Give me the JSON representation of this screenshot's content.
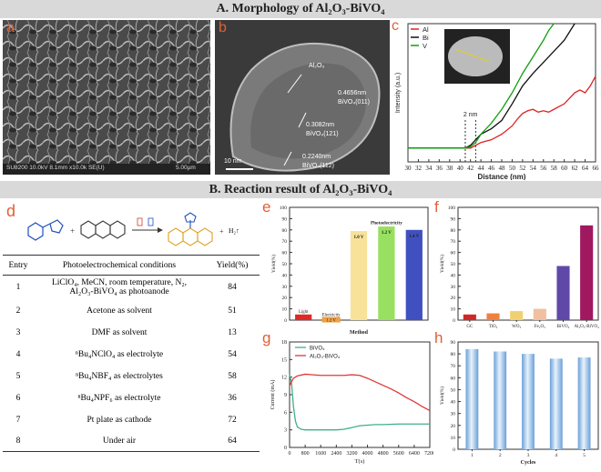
{
  "header_a": "A. Morphology of Al₂O₃-BiVO₄",
  "header_b": "B. Reaction result of Al₂O₃-BiVO₄",
  "panel_letters": {
    "a": "a",
    "b": "b",
    "c": "c",
    "d": "d",
    "e": "e",
    "f": "f",
    "g": "g",
    "h": "h"
  },
  "sem": {
    "footer": "SU8200 10.0kV 8.1mm x10.0k SE(U)",
    "scale": "5.00µm"
  },
  "tem": {
    "layer": "Al₂O₃",
    "d1": "0.4656nm",
    "d1b": "BiVO₄(011)",
    "d2": "0.3082nm",
    "d2b": "BiVO₄(121)",
    "d3": "0.2240nm",
    "d3b": "BiVO₄(112)",
    "scale": "10 nm"
  },
  "table": {
    "headers": [
      "Entry",
      "Photoelectrochemical conditions",
      "Yield(%)"
    ],
    "rows": [
      {
        "entry": "1",
        "cond": "LiClO₄, MeCN, room temperature, N₂,",
        "cond2": "Al₂O₃-BiVO₄ as photoanode",
        "yield": "84"
      },
      {
        "entry": "2",
        "cond": "Acetone as solvent",
        "cond2": "",
        "yield": "51"
      },
      {
        "entry": "3",
        "cond": "DMF as solvent",
        "cond2": "",
        "yield": "13"
      },
      {
        "entry": "4",
        "cond": "ⁿBu₄NClO₄ as electrolyte",
        "cond2": "",
        "yield": "54"
      },
      {
        "entry": "5",
        "cond": "ⁿBu₄NBF₄ as electrolytes",
        "cond2": "",
        "yield": "58"
      },
      {
        "entry": "6",
        "cond": "ⁿBu₄NPF₆ as electrolyte",
        "cond2": "",
        "yield": "36"
      },
      {
        "entry": "7",
        "cond": "Pt plate as cathode",
        "cond2": "",
        "yield": "72"
      },
      {
        "entry": "8",
        "cond": "Under air",
        "cond2": "",
        "yield": "64"
      }
    ],
    "h2": "H₂↑"
  },
  "chart_data": [
    {
      "id": "c",
      "type": "line",
      "xlabel": "Distance (nm)",
      "ylabel": "Intensity (a.u.)",
      "xlim": [
        30,
        66
      ],
      "xticks": [
        30,
        32,
        34,
        36,
        38,
        40,
        42,
        44,
        46,
        48,
        50,
        52,
        54,
        56,
        58,
        60,
        62,
        64,
        66
      ],
      "annotation": "2 nm",
      "series": [
        {
          "name": "Al",
          "color": "#e02020",
          "x": [
            30,
            38,
            40,
            41,
            42,
            43,
            44,
            46,
            48,
            50,
            51,
            52,
            53,
            54,
            55,
            56,
            57,
            58,
            59,
            60,
            61,
            62,
            63,
            64,
            65,
            66
          ],
          "y": [
            0.1,
            0.1,
            0.1,
            0.1,
            0.1,
            0.12,
            0.14,
            0.16,
            0.2,
            0.26,
            0.31,
            0.35,
            0.37,
            0.38,
            0.36,
            0.37,
            0.36,
            0.38,
            0.4,
            0.42,
            0.46,
            0.5,
            0.52,
            0.5,
            0.55,
            0.62
          ]
        },
        {
          "name": "Bi",
          "color": "#111111",
          "x": [
            30,
            38,
            40,
            41,
            42,
            43,
            44,
            46,
            48,
            50,
            52,
            54,
            56,
            58,
            60,
            61,
            62
          ],
          "y": [
            0.1,
            0.1,
            0.1,
            0.1,
            0.12,
            0.16,
            0.2,
            0.24,
            0.3,
            0.42,
            0.55,
            0.64,
            0.72,
            0.8,
            0.88,
            0.94,
            1.0
          ]
        },
        {
          "name": "V",
          "color": "#10a010",
          "x": [
            30,
            38,
            40,
            41,
            42,
            43,
            44,
            46,
            48,
            50,
            52,
            54,
            56,
            57,
            58
          ],
          "y": [
            0.1,
            0.1,
            0.1,
            0.1,
            0.11,
            0.14,
            0.2,
            0.28,
            0.38,
            0.5,
            0.64,
            0.76,
            0.88,
            0.95,
            1.0
          ]
        }
      ]
    },
    {
      "id": "e",
      "type": "bar",
      "categories": [
        "Light",
        "Electricity",
        "Photoelectricity 1.0 V",
        "Photoelectricity 1.2 V",
        "Photoelectricity 1.4 V"
      ],
      "values": [
        5,
        2,
        79,
        83,
        80
      ],
      "bar_labels": [
        "Light",
        "Electricity",
        "1.0 V",
        "1.2 V",
        "1.4 V"
      ],
      "under_labels": [
        "",
        "1.2 V",
        "",
        "",
        ""
      ],
      "group_label": "Photoelectricity",
      "colors": [
        "#e02828",
        "#f0a040",
        "#f8e29a",
        "#98e060",
        "#4050c0"
      ],
      "xlabel": "Method",
      "ylabel": "Yield(%)",
      "ylim": [
        0,
        100
      ],
      "yticks": [
        0,
        10,
        20,
        30,
        40,
        50,
        60,
        70,
        80,
        90,
        100
      ]
    },
    {
      "id": "f",
      "type": "bar",
      "categories": [
        "GC",
        "TiO₂",
        "WO₃",
        "Fe₂O₃",
        "BiVO₄",
        "Al₂O₃-BiVO₄"
      ],
      "values": [
        5,
        6,
        8,
        10,
        48,
        84
      ],
      "colors": [
        "#d02828",
        "#f08040",
        "#f0d070",
        "#f0c0a0",
        "#6048a8",
        "#a01860"
      ],
      "ylabel": "Yield(%)",
      "ylim": [
        0,
        100
      ],
      "yticks": [
        0,
        10,
        20,
        30,
        40,
        50,
        60,
        70,
        80,
        90,
        100
      ]
    },
    {
      "id": "g",
      "type": "line",
      "xlabel": "T(s)",
      "ylabel": "Current (mA)",
      "xlim": [
        0,
        7200
      ],
      "ylim": [
        0,
        18
      ],
      "xticks": [
        0,
        800,
        1600,
        2400,
        3200,
        4000,
        4800,
        5600,
        6400,
        7200
      ],
      "yticks": [
        0,
        3,
        6,
        9,
        12,
        15,
        18
      ],
      "series": [
        {
          "name": "BiVO₄",
          "color": "#40b088",
          "x": [
            0,
            100,
            200,
            300,
            400,
            600,
            800,
            1200,
            1600,
            2000,
            2400,
            2800,
            3200,
            3600,
            4000,
            4400,
            4800,
            5600,
            6400,
            7200
          ],
          "y": [
            12.5,
            11,
            7,
            4.5,
            3.5,
            3.1,
            3.0,
            3.0,
            3.0,
            3.0,
            3.0,
            3.1,
            3.4,
            3.7,
            3.8,
            3.9,
            3.9,
            4.0,
            4.0,
            4.0
          ]
        },
        {
          "name": "Al₂O₃-BiVO₄",
          "color": "#e03838",
          "x": [
            0,
            100,
            200,
            400,
            800,
            1200,
            1600,
            2000,
            2400,
            2800,
            3200,
            3600,
            4000,
            4400,
            4800,
            5200,
            5600,
            6000,
            6400,
            6800,
            7200
          ],
          "y": [
            10.5,
            11.2,
            11.8,
            12.2,
            12.5,
            12.4,
            12.3,
            12.3,
            12.3,
            12.3,
            12.4,
            12.3,
            11.8,
            11.2,
            10.6,
            10.0,
            9.3,
            8.5,
            7.8,
            7.0,
            6.3
          ]
        }
      ]
    },
    {
      "id": "h",
      "type": "bar",
      "categories": [
        "1",
        "2",
        "3",
        "4",
        "5"
      ],
      "values": [
        84,
        82,
        80,
        76,
        77
      ],
      "xlabel": "Cycles",
      "ylabel": "Yield(%)",
      "ylim": [
        0,
        90
      ],
      "yticks": [
        0,
        10,
        20,
        30,
        40,
        50,
        60,
        70,
        80,
        90
      ]
    }
  ]
}
